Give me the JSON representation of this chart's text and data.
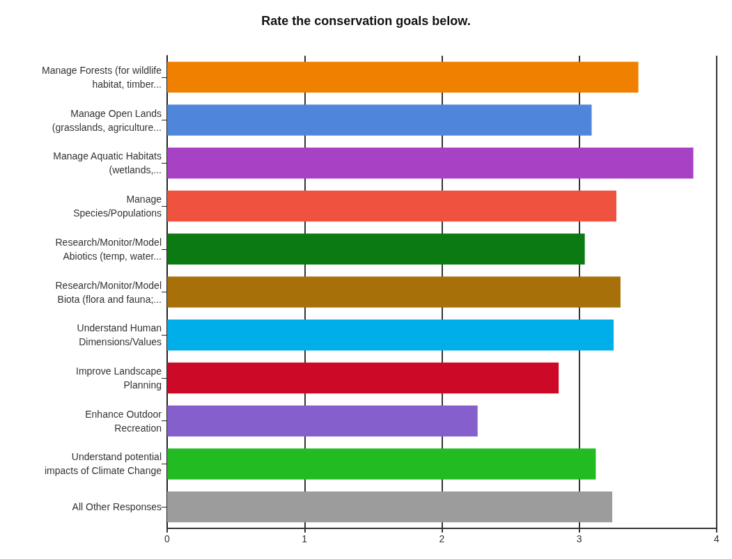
{
  "chart_data": {
    "type": "bar",
    "orientation": "horizontal",
    "title": "Rate the conservation goals below.",
    "categories": [
      "Manage Forests (for wildlife\nhabitat, timber...",
      "Manage Open Lands\n(grasslands, agriculture...",
      "Manage Aquatic Habitats\n(wetlands,...",
      "Manage\nSpecies/Populations",
      "Research/Monitor/Model\nAbiotics (temp, water...",
      "Research/Monitor/Model\nBiota (flora and fauna;...",
      "Understand Human\nDimensions/Values",
      "Improve Landscape\nPlanning",
      "Enhance Outdoor\nRecreation",
      "Understand potential\nimpacts of Climate Change",
      "All Other Responses"
    ],
    "values": [
      3.43,
      3.09,
      3.83,
      3.27,
      3.04,
      3.3,
      3.25,
      2.85,
      2.26,
      3.12,
      3.24
    ],
    "colors": [
      "#f08000",
      "#4f86dc",
      "#a742c4",
      "#ef5340",
      "#0c7a12",
      "#a87008",
      "#00aeea",
      "#cc0a28",
      "#8560cc",
      "#22bb22",
      "#9c9c9c"
    ],
    "xlim": [
      0,
      4
    ],
    "xticks": [
      0,
      1,
      2,
      3,
      4
    ],
    "grid": "x"
  }
}
